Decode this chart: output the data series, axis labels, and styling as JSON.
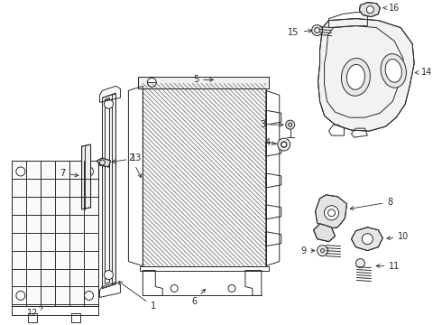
{
  "bg_color": "#ffffff",
  "line_color": "#2a2a2a",
  "fig_width": 4.9,
  "fig_height": 3.6,
  "dpi": 100,
  "label_font_size": 7.0,
  "lw": 0.7
}
